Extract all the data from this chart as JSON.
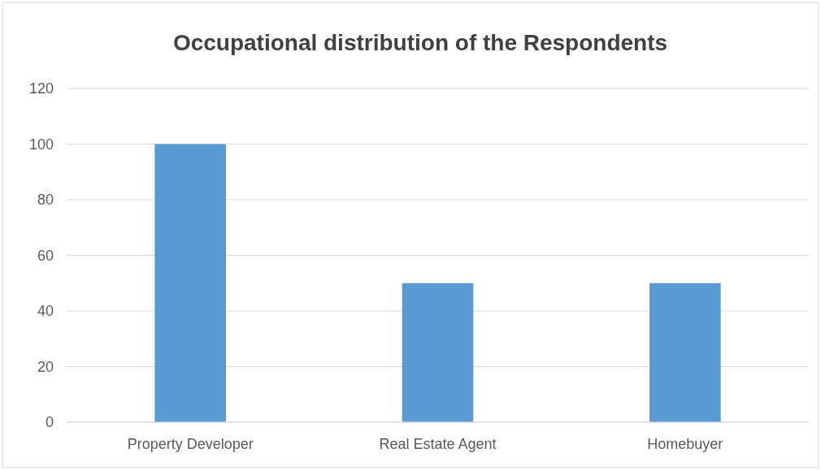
{
  "chart_data": {
    "type": "bar",
    "title": "Occupational distribution of the Respondents",
    "categories": [
      "Property Developer",
      "Real Estate Agent",
      "Homebuyer"
    ],
    "values": [
      100,
      50,
      50
    ],
    "color": "#5b9bd5",
    "ylim": [
      0,
      120
    ],
    "yticks": [
      0,
      20,
      40,
      60,
      80,
      100,
      120
    ],
    "grid": "y"
  }
}
